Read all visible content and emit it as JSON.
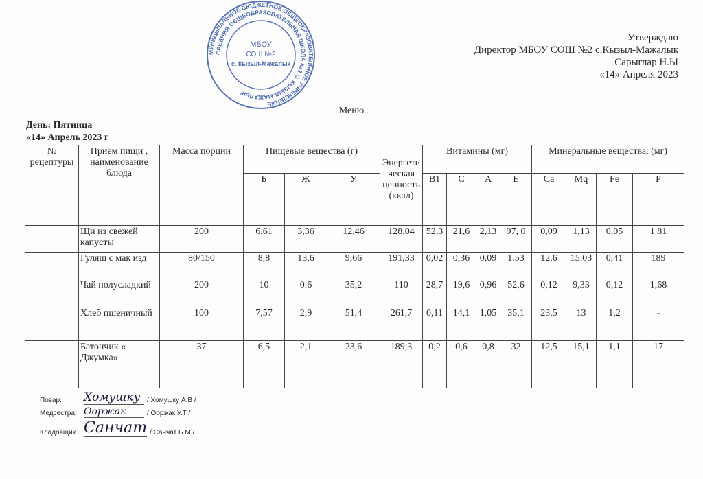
{
  "approval": {
    "line1": "Утверждаю",
    "line2": "Директор МБОУ СОШ №2 с.Кызыл-Мажалык",
    "line3": "Сарыглар Н.Ы",
    "line4": "«14» Апреля 2023"
  },
  "stamp": {
    "outer_text": "МУНИЦИПАЛЬНОЕ БЮДЖЕТНОЕ ОБЩЕОБРАЗОВАТЕЛЬНОЕ УЧРЕЖДЕНИЕ СРЕДНЯЯ ОБЩЕОБРАЗОВАТЕЛЬНАЯ ШКОЛА №2 С. КЫЗЫЛ-МАЖАЛЫК",
    "center_line1": "МБОУ",
    "center_line2": "СОШ №2",
    "center_line3": "с. Кызыл-Мажалык",
    "color": "#2b4fa8"
  },
  "title": "Меню",
  "day": "День: Пятница",
  "date": "«14» Апрель 2023 г",
  "table": {
    "headers": {
      "recipe": "№ рецептуры",
      "meal": "Прием пищи , наименование блюда",
      "mass": "Масса порции",
      "nutrients": "Пищевые вещества (г)",
      "energy": "Энергетическая ценность (ккал)",
      "vitamins": "Витамины (мг)",
      "minerals": "Минеральные вещества, (мг)",
      "sub": [
        "Б",
        "Ж",
        "У",
        "B1",
        "C",
        "A",
        "E",
        "Ca",
        "Mq",
        "Fe",
        "P"
      ]
    },
    "rows": [
      {
        "recipe": "",
        "name": "Щи из свежей капусты",
        "mass": "200",
        "b": "6,61",
        "zh": "3,36",
        "u": "12,46",
        "energy": "128,04",
        "b1": "52,3",
        "c": "21,6",
        "a": "2,13",
        "e": "97, 0",
        "ca": "0,09",
        "mq": "1,13",
        "fe": "0,05",
        "p": "1.81"
      },
      {
        "recipe": "",
        "name": "Гуляш с мак изд",
        "mass": "80/150",
        "b": "8,8",
        "zh": "13,6",
        "u": "9,66",
        "energy": "191,33",
        "b1": "0,02",
        "c": "0,36",
        "a": "0,09",
        "e": "1.53",
        "ca": "12,6",
        "mq": "15.03",
        "fe": "0,41",
        "p": "189"
      },
      {
        "recipe": "",
        "name": "Чай полусладкий",
        "mass": "200",
        "b": "10",
        "zh": "0.6",
        "u": "35,2",
        "energy": "110",
        "b1": "28,7",
        "c": "19,6",
        "a": "0,96",
        "e": "52,6",
        "ca": "0,12",
        "mq": "9,33",
        "fe": "0,12",
        "p": "1,68"
      },
      {
        "recipe": "",
        "name": "Хлеб пшеничный",
        "mass": "100",
        "b": "7,57",
        "zh": "2,9",
        "u": "51,4",
        "energy": "261,7",
        "b1": "0,11",
        "c": "14,1",
        "a": "1,05",
        "e": "35,1",
        "ca": "23,5",
        "mq": "13",
        "fe": "1,2",
        "p": "-"
      },
      {
        "recipe": "",
        "name": "Батончик « Джумка»",
        "mass": "37",
        "b": "6,5",
        "zh": "2,1",
        "u": "23,6",
        "energy": "189,3",
        "b1": "0,2",
        "c": "0,6",
        "a": "0,8",
        "e": "32",
        "ca": "12,5",
        "mq": "15,1",
        "fe": "1,1",
        "p": "17"
      }
    ]
  },
  "signatures": [
    {
      "role": "Повар:",
      "name": "/ Хомушку А.В /",
      "signature": "Хомушку"
    },
    {
      "role": "Медсестра:",
      "name": "/ Ооржак У.Т /",
      "signature": "Ооржак"
    },
    {
      "role": "Кладовщик",
      "name": "/ Санчат Б.М /",
      "signature": "Санчат"
    }
  ]
}
